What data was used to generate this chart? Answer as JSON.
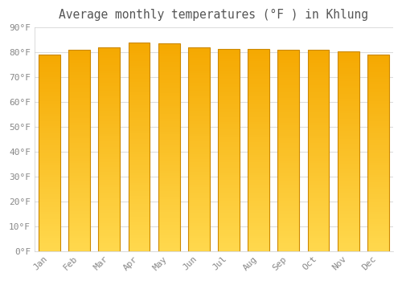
{
  "title": "Average monthly temperatures (°F ) in Khlung",
  "months": [
    "Jan",
    "Feb",
    "Mar",
    "Apr",
    "May",
    "Jun",
    "Jul",
    "Aug",
    "Sep",
    "Oct",
    "Nov",
    "Dec"
  ],
  "values": [
    79,
    81,
    82,
    84,
    83.5,
    82,
    81.5,
    81.5,
    81,
    81,
    80.5,
    79
  ],
  "ylim": [
    0,
    90
  ],
  "yticks": [
    0,
    10,
    20,
    30,
    40,
    50,
    60,
    70,
    80,
    90
  ],
  "ytick_labels": [
    "0°F",
    "10°F",
    "20°F",
    "30°F",
    "40°F",
    "50°F",
    "60°F",
    "70°F",
    "80°F",
    "90°F"
  ],
  "bar_color_bottom": "#FFD84D",
  "bar_color_top": "#F5A800",
  "background_color": "#FFFFFF",
  "plot_bg_color": "#FFFFFF",
  "grid_color": "#DDDDDD",
  "title_fontsize": 10.5,
  "tick_fontsize": 8,
  "bar_width": 0.72,
  "title_color": "#555555",
  "tick_color": "#888888",
  "bar_border_color": "#CC8800"
}
